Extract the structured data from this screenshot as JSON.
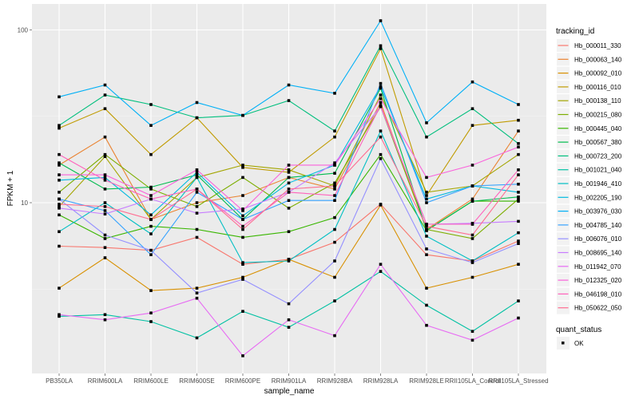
{
  "chart_data": {
    "type": "line",
    "title": "",
    "xlabel": "sample_name",
    "ylabel": "FPKM + 1",
    "yscale": "log10",
    "ylim": [
      1.0,
      165
    ],
    "y_ticks": [
      10,
      100
    ],
    "y_tick_labels": [
      "10",
      "100"
    ],
    "grid": true,
    "categories": [
      "PB350LA",
      "RRIM600LA",
      "RRIM600LE",
      "RRIM600SE",
      "RRIM600PE",
      "RRIM901LA",
      "RRIM928BA",
      "RRIM928LA",
      "RRIM928LE",
      "RRII105LA_Control",
      "RRII105LA_Stressed"
    ],
    "legend": {
      "position": "right",
      "color_title": "tracking_id",
      "shape_title": "quant_status",
      "shape_entries": [
        "OK"
      ]
    },
    "series": [
      {
        "name": "Hb_000011_330",
        "color": "#F8766D",
        "values": [
          5.6,
          5.5,
          5.3,
          6.3,
          4.4,
          4.7,
          5.9,
          9.8,
          5.0,
          4.6,
          6.0
        ]
      },
      {
        "name": "Hb_000063_140",
        "color": "#EA8331",
        "values": [
          16.5,
          24.0,
          8.0,
          10.0,
          11.0,
          14.0,
          12.0,
          38.0,
          7.0,
          10.5,
          26.0
        ]
      },
      {
        "name": "Hb_000092_010",
        "color": "#D89000",
        "values": [
          3.2,
          4.8,
          3.1,
          3.2,
          3.7,
          4.7,
          3.7,
          9.7,
          3.2,
          3.7,
          4.4
        ]
      },
      {
        "name": "Hb_000116_010",
        "color": "#C09B00",
        "values": [
          27.0,
          35.0,
          19.0,
          31.0,
          16.0,
          15.0,
          24.0,
          78.0,
          11.0,
          28.0,
          30.0
        ]
      },
      {
        "name": "Hb_000138_110",
        "color": "#A3A500",
        "values": [
          9.5,
          18.5,
          8.0,
          14.0,
          16.5,
          15.5,
          12.5,
          42.0,
          11.5,
          12.5,
          19.0
        ]
      },
      {
        "name": "Hb_000215_080",
        "color": "#7CAE00",
        "values": [
          11.5,
          19.0,
          12.0,
          9.5,
          14.0,
          9.3,
          13.0,
          36.0,
          7.0,
          6.2,
          10.5
        ]
      },
      {
        "name": "Hb_000445_040",
        "color": "#39B600",
        "values": [
          8.5,
          6.2,
          7.3,
          7.0,
          6.3,
          6.8,
          8.2,
          19.0,
          6.9,
          10.2,
          10.2
        ]
      },
      {
        "name": "Hb_000567_380",
        "color": "#00BB4E",
        "values": [
          17.0,
          12.0,
          12.3,
          14.5,
          8.0,
          14.0,
          14.8,
          46.0,
          6.9,
          10.2,
          10.8
        ]
      },
      {
        "name": "Hb_000723_200",
        "color": "#00BF7D",
        "values": [
          28.0,
          42.0,
          37.0,
          31.0,
          32.0,
          39.0,
          26.0,
          81.0,
          24.0,
          35.0,
          22.0
        ]
      },
      {
        "name": "Hb_001021_040",
        "color": "#00C1A3",
        "values": [
          2.2,
          2.25,
          2.05,
          1.65,
          2.35,
          1.9,
          2.7,
          4.0,
          2.55,
          1.8,
          2.7
        ]
      },
      {
        "name": "Hb_001946_410",
        "color": "#00BFC4",
        "values": [
          6.8,
          10.0,
          6.6,
          14.0,
          4.5,
          4.6,
          7.0,
          26.0,
          6.4,
          4.6,
          6.7
        ]
      },
      {
        "name": "Hb_002205_190",
        "color": "#00BAE0",
        "values": [
          13.5,
          14.0,
          8.5,
          15.0,
          8.4,
          13.0,
          16.5,
          47.0,
          10.5,
          12.5,
          11.5
        ]
      },
      {
        "name": "Hb_003976_030",
        "color": "#00B0F6",
        "values": [
          41.0,
          48.0,
          28.0,
          38.0,
          32.0,
          48.0,
          43.0,
          113.0,
          29.0,
          50.0,
          37.0
        ]
      },
      {
        "name": "Hb_004785_140",
        "color": "#35A2FF",
        "values": [
          10.5,
          9.0,
          5.0,
          11.5,
          8.0,
          10.3,
          10.3,
          49.0,
          10.0,
          12.5,
          12.8
        ]
      },
      {
        "name": "Hb_006076_010",
        "color": "#9590FF",
        "values": [
          10.5,
          6.5,
          5.3,
          3.0,
          3.6,
          2.6,
          4.6,
          18.0,
          5.4,
          4.5,
          5.8
        ]
      },
      {
        "name": "Hb_008695_140",
        "color": "#C77CFF",
        "values": [
          9.3,
          8.6,
          10.5,
          8.7,
          9.2,
          11.5,
          17.0,
          36.0,
          7.5,
          7.6,
          7.8
        ]
      },
      {
        "name": "Hb_011942_070",
        "color": "#E76BF3",
        "values": [
          2.25,
          2.1,
          2.3,
          2.8,
          1.3,
          2.1,
          1.7,
          4.4,
          1.95,
          1.6,
          2.15
        ]
      },
      {
        "name": "Hb_012325_020",
        "color": "#FA62DB",
        "values": [
          14.5,
          14.5,
          11.0,
          15.5,
          9.0,
          16.5,
          16.5,
          40.0,
          14.0,
          16.5,
          21.0
        ]
      },
      {
        "name": "Hb_046198_010",
        "color": "#FF62BC",
        "values": [
          19.0,
          13.5,
          10.5,
          12.0,
          7.3,
          11.5,
          11.0,
          36.5,
          7.5,
          7.5,
          15.5
        ]
      },
      {
        "name": "Hb_050622_050",
        "color": "#FF6C91",
        "values": [
          9.8,
          9.5,
          8.0,
          12.0,
          7.0,
          12.0,
          12.5,
          24.0,
          7.3,
          6.5,
          14.5
        ]
      }
    ]
  }
}
